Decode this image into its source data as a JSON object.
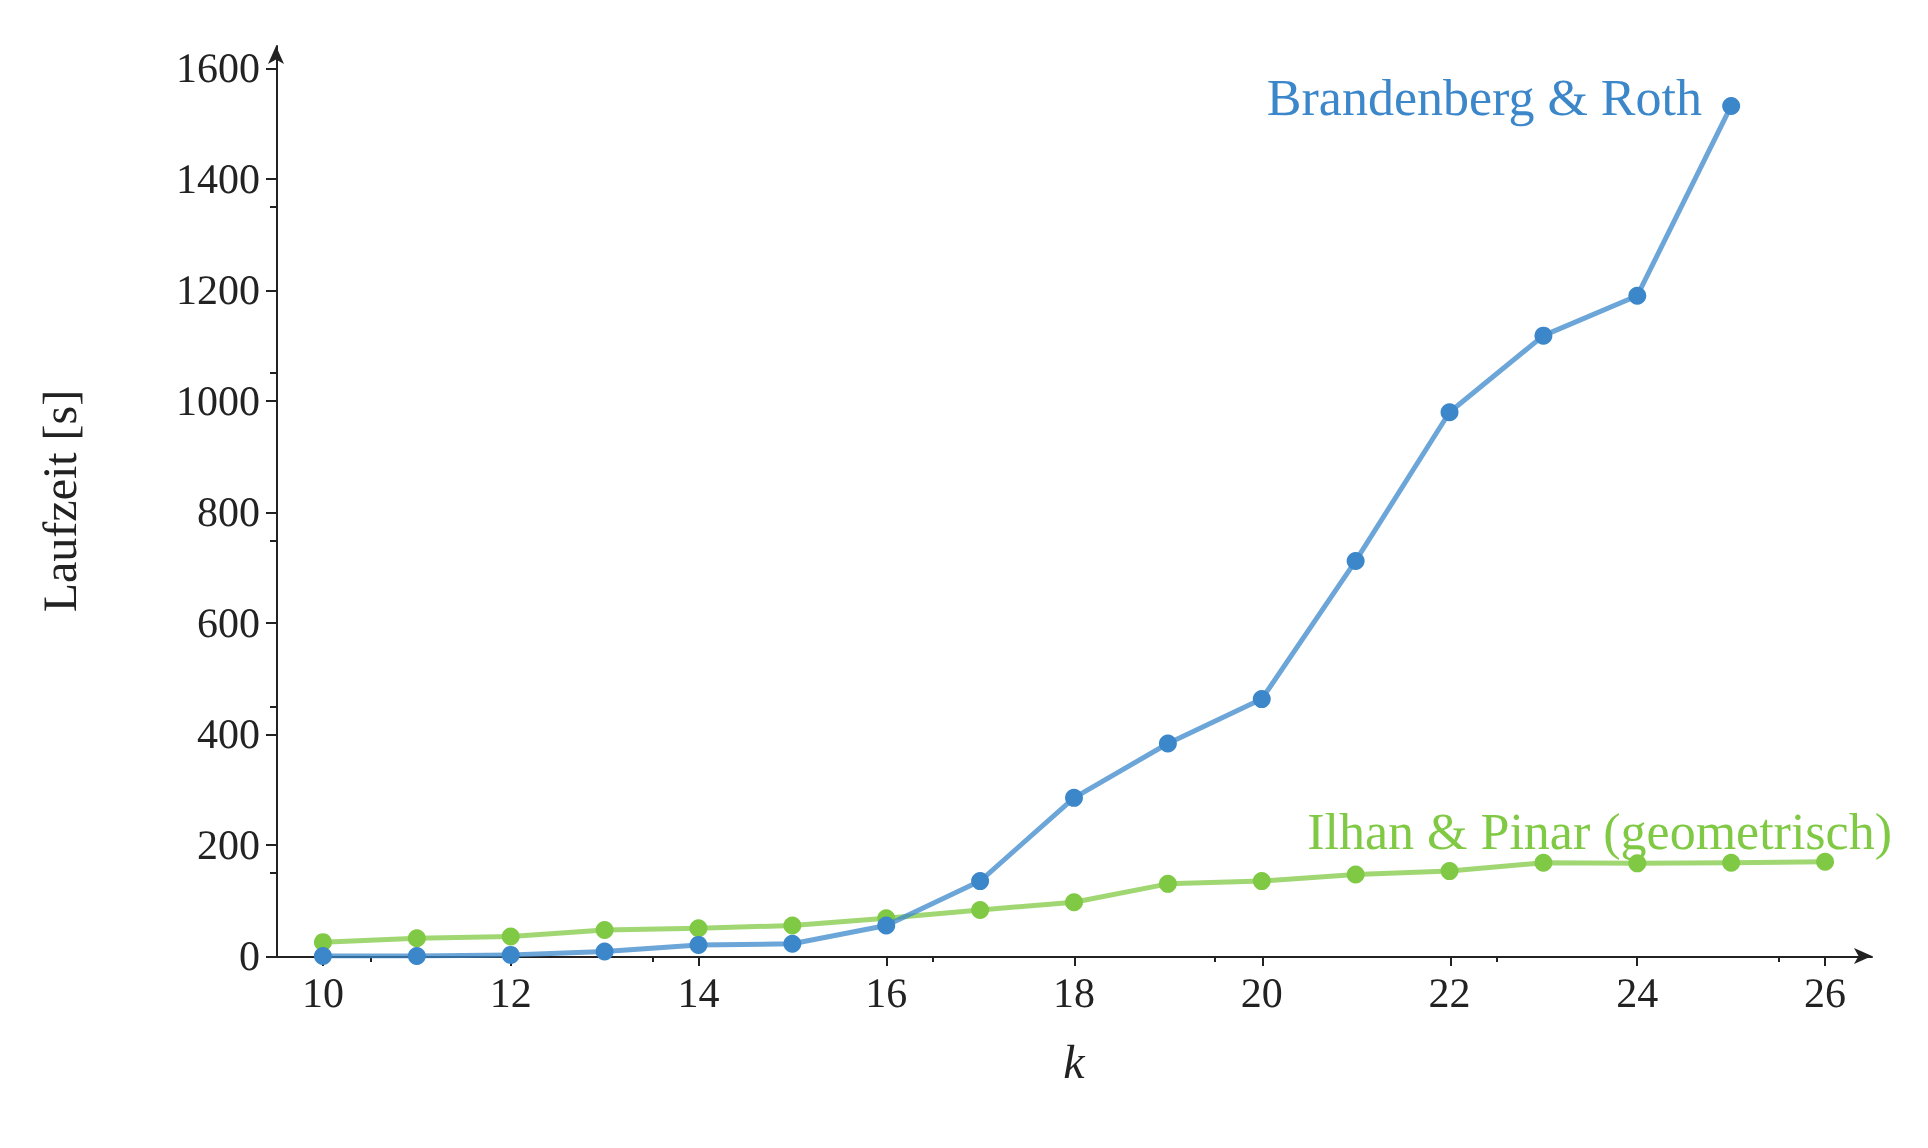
{
  "chart_data": {
    "type": "line",
    "xlabel": "k",
    "ylabel": "Laufzeit [s]",
    "x": [
      10,
      11,
      12,
      13,
      14,
      15,
      16,
      17,
      18,
      19,
      20,
      21,
      22,
      23,
      24,
      25,
      26
    ],
    "xlim": [
      9.5,
      26.5
    ],
    "xticks": [
      10,
      12,
      14,
      16,
      18,
      20,
      22,
      24,
      26
    ],
    "ylim": [
      0,
      1640
    ],
    "yticks": [
      0,
      200,
      400,
      600,
      800,
      1000,
      1200,
      1400,
      1600
    ],
    "series": [
      {
        "name": "Brandenberg & Roth",
        "color": "#3b87c9",
        "values": [
          0,
          0,
          2,
          8,
          20,
          22,
          55,
          135,
          285,
          383,
          463,
          712,
          980,
          1118,
          1190,
          1532,
          null
        ]
      },
      {
        "name": "Ilhan & Pinar (geometrisch)",
        "color": "#80c944",
        "values": [
          25,
          32,
          35,
          47,
          50,
          55,
          68,
          83,
          97,
          130,
          135,
          147,
          153,
          168,
          167,
          168,
          170
        ]
      }
    ],
    "grid": false,
    "legend": false,
    "marker": "circle",
    "line_style": "solid"
  }
}
